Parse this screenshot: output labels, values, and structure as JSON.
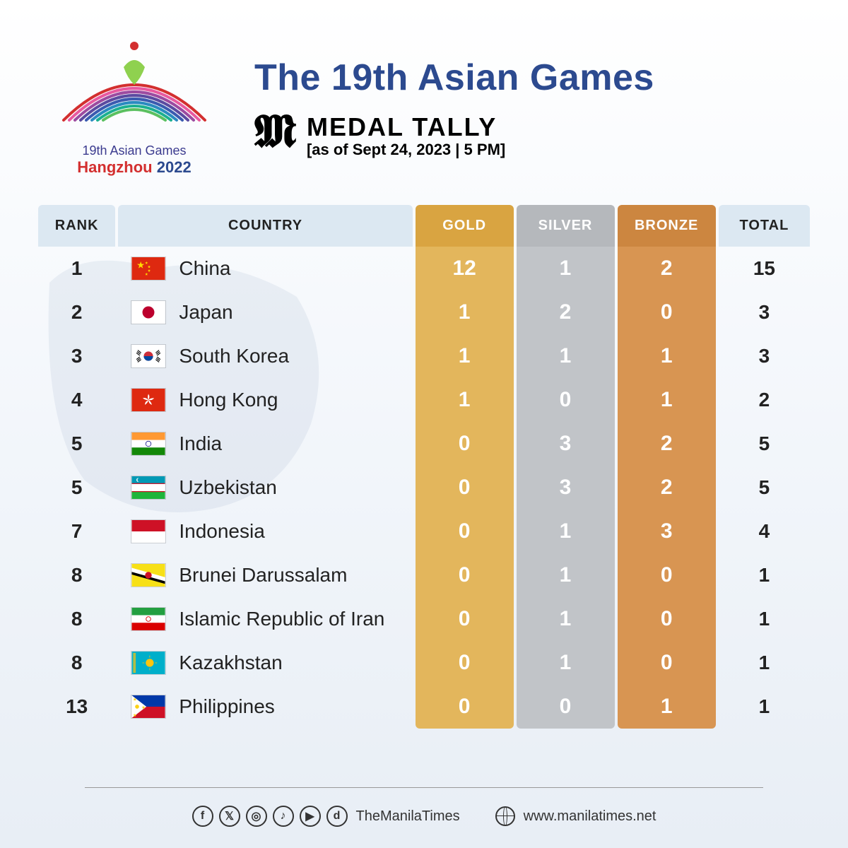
{
  "header": {
    "logo_line1": "19th Asian Games",
    "logo_line2_a": "Hangzhou",
    "logo_line2_b": " 2022",
    "main_title": "The 19th Asian Games",
    "tally_title": "MEDAL TALLY",
    "tally_date": "[as of Sept 24, 2023 | 5 PM]"
  },
  "columns": {
    "rank": "RANK",
    "country": "COUNTRY",
    "gold": "GOLD",
    "silver": "SILVER",
    "bronze": "BRONZE",
    "total": "TOTAL"
  },
  "colors": {
    "title": "#2c4a8f",
    "header_bg": "#dce8f2",
    "gold_header": "#d9a441",
    "gold_cell": "#e3b65c",
    "silver_header": "#b5b8bc",
    "silver_cell": "#c1c4c8",
    "bronze_header": "#cc8640",
    "bronze_cell": "#d89552"
  },
  "rows": [
    {
      "rank": "1",
      "country": "China",
      "gold": "12",
      "silver": "1",
      "bronze": "2",
      "total": "15",
      "flag": "cn"
    },
    {
      "rank": "2",
      "country": "Japan",
      "gold": "1",
      "silver": "2",
      "bronze": "0",
      "total": "3",
      "flag": "jp"
    },
    {
      "rank": "3",
      "country": "South Korea",
      "gold": "1",
      "silver": "1",
      "bronze": "1",
      "total": "3",
      "flag": "kr"
    },
    {
      "rank": "4",
      "country": "Hong Kong",
      "gold": "1",
      "silver": "0",
      "bronze": "1",
      "total": "2",
      "flag": "hk"
    },
    {
      "rank": "5",
      "country": "India",
      "gold": "0",
      "silver": "3",
      "bronze": "2",
      "total": "5",
      "flag": "in"
    },
    {
      "rank": "5",
      "country": "Uzbekistan",
      "gold": "0",
      "silver": "3",
      "bronze": "2",
      "total": "5",
      "flag": "uz"
    },
    {
      "rank": "7",
      "country": "Indonesia",
      "gold": "0",
      "silver": "1",
      "bronze": "3",
      "total": "4",
      "flag": "id"
    },
    {
      "rank": "8",
      "country": "Brunei Darussalam",
      "gold": "0",
      "silver": "1",
      "bronze": "0",
      "total": "1",
      "flag": "bn"
    },
    {
      "rank": "8",
      "country": "Islamic Republic of Iran",
      "gold": "0",
      "silver": "1",
      "bronze": "0",
      "total": "1",
      "flag": "ir"
    },
    {
      "rank": "8",
      "country": "Kazakhstan",
      "gold": "0",
      "silver": "1",
      "bronze": "0",
      "total": "1",
      "flag": "kz"
    },
    {
      "rank": "13",
      "country": "Philippines",
      "gold": "0",
      "silver": "0",
      "bronze": "1",
      "total": "1",
      "flag": "ph"
    }
  ],
  "footer": {
    "handle": "TheManilaTimes",
    "url": "www.manilatimes.net",
    "social_glyphs": [
      "f",
      "𝕏",
      "◎",
      "♪",
      "▶",
      "d"
    ]
  },
  "flags": {
    "cn": "<rect width='50' height='34' fill='#de2910'/><text x='8' y='16' fill='#ffde00' font-size='12'>★</text><text x='20' y='10' fill='#ffde00' font-size='5'>★</text><text x='24' y='16' fill='#ffde00' font-size='5'>★</text><text x='24' y='22' fill='#ffde00' font-size='5'>★</text><text x='20' y='27' fill='#ffde00' font-size='5'>★</text>",
    "jp": "<rect width='50' height='34' fill='#fff'/><circle cx='25' cy='17' r='9' fill='#bc002d'/>",
    "kr": "<rect width='50' height='34' fill='#fff'/><circle cx='25' cy='17' r='7' fill='#cd2e3a'/><path d='M18 17 a7 7 0 0 0 14 0' fill='#0047a0'/><g stroke='#000' stroke-width='1.2'><line x1='9' y1='8' x2='14' y2='12'/><line x1='8' y1='10' x2='13' y2='14'/><line x1='7' y1='12' x2='12' y2='16'/><line x1='36' y1='12' x2='41' y2='8'/><line x1='37' y1='14' x2='42' y2='10'/><line x1='38' y1='16' x2='43' y2='12'/><line x1='9' y1='26' x2='14' y2='22'/><line x1='8' y1='24' x2='13' y2='20'/><line x1='7' y1='22' x2='12' y2='18'/><line x1='36' y1='22' x2='41' y2='26'/><line x1='37' y1='20' x2='42' y2='24'/><line x1='38' y1='18' x2='43' y2='22'/></g>",
    "hk": "<rect width='50' height='34' fill='#de2910'/><g transform='translate(25,17)'><g fill='#fff'><path d='M0,-9 Q3,-5 0,0 Q-2,-4 0,-9' /><path d='M0,-9 Q3,-5 0,0 Q-2,-4 0,-9' transform='rotate(72)'/><path d='M0,-9 Q3,-5 0,0 Q-2,-4 0,-9' transform='rotate(144)'/><path d='M0,-9 Q3,-5 0,0 Q-2,-4 0,-9' transform='rotate(216)'/><path d='M0,-9 Q3,-5 0,0 Q-2,-4 0,-9' transform='rotate(288)'/></g></g>",
    "in": "<rect width='50' height='11.3' y='0' fill='#ff9933'/><rect width='50' height='11.3' y='11.3' fill='#fff'/><rect width='50' height='11.3' y='22.6' fill='#138808'/><circle cx='25' cy='17' r='4' fill='none' stroke='#000080' stroke-width='0.8'/>",
    "uz": "<rect width='50' height='11' y='0' fill='#1eb53a'/><rect width='50' height='1.5' y='10' fill='#ce1126'/><rect width='50' height='11' y='11.5' fill='#fff'/><rect width='50' height='1.5' y='22.5' fill='#ce1126'/><rect width='50' height='10' y='24' fill='#0099b5'/><rect width='50' height='11' y='0' fill='#0099b5'/><rect width='50' height='11' y='23' fill='#1eb53a'/><rect width='50' height='1.3' y='10.3' fill='#ce1126'/><rect width='50' height='1.3' y='22.3' fill='#ce1126'/><circle cx='10' cy='5.5' r='3' fill='#fff'/><circle cx='11.5' cy='5.5' r='3' fill='#0099b5'/>",
    "id": "<rect width='50' height='17' y='0' fill='#ce1126'/><rect width='50' height='17' y='17' fill='#fff'/>",
    "bn": "<rect width='50' height='34' fill='#f7e017'/><polygon points='0,6 50,20 50,28 0,14' fill='#fff'/><polygon points='0,14 50,28 50,28 0,14' fill='#000'/><polygon points='0,12 50,26 50,30 0,16' fill='#000'/><polygon points='0,6 50,20 50,24 0,10' fill='#fff'/><g transform='translate(25,17)'><circle r='5' fill='#ce1126'/></g>",
    "ir": "<rect width='50' height='11.3' y='0' fill='#239f40'/><rect width='50' height='11.3' y='11.3' fill='#fff'/><rect width='50' height='11.3' y='22.6' fill='#da0000'/><g fill='#da0000' transform='translate(25,17)'><circle r='3.5' fill='none' stroke='#da0000' stroke-width='1'/></g>",
    "kz": "<rect width='50' height='34' fill='#00afca'/><circle cx='27' cy='17' r='6' fill='#fec50c'/><g stroke='#fec50c' stroke-width='0.8'><line x1='27' y1='6' x2='27' y2='9'/><line x1='27' y1='25' x2='27' y2='28'/><line x1='16' y1='17' x2='19' y2='17'/><line x1='35' y1='17' x2='38' y2='17'/></g><rect x='2' y='2' width='4' height='30' fill='#fec50c' opacity='0.7'/>",
    "ph": "<rect width='50' height='17' y='0' fill='#0038a8'/><rect width='50' height='17' y='17' fill='#ce1126'/><polygon points='0,0 22,17 0,34' fill='#fff'/><circle cx='8' cy='17' r='3' fill='#fcd116'/><text x='2' y='8' fill='#fcd116' font-size='6'>★</text><text x='2' y='32' fill='#fcd116' font-size='6'>★</text><text x='15' y='20' fill='#fcd116' font-size='6'>★</text>"
  }
}
